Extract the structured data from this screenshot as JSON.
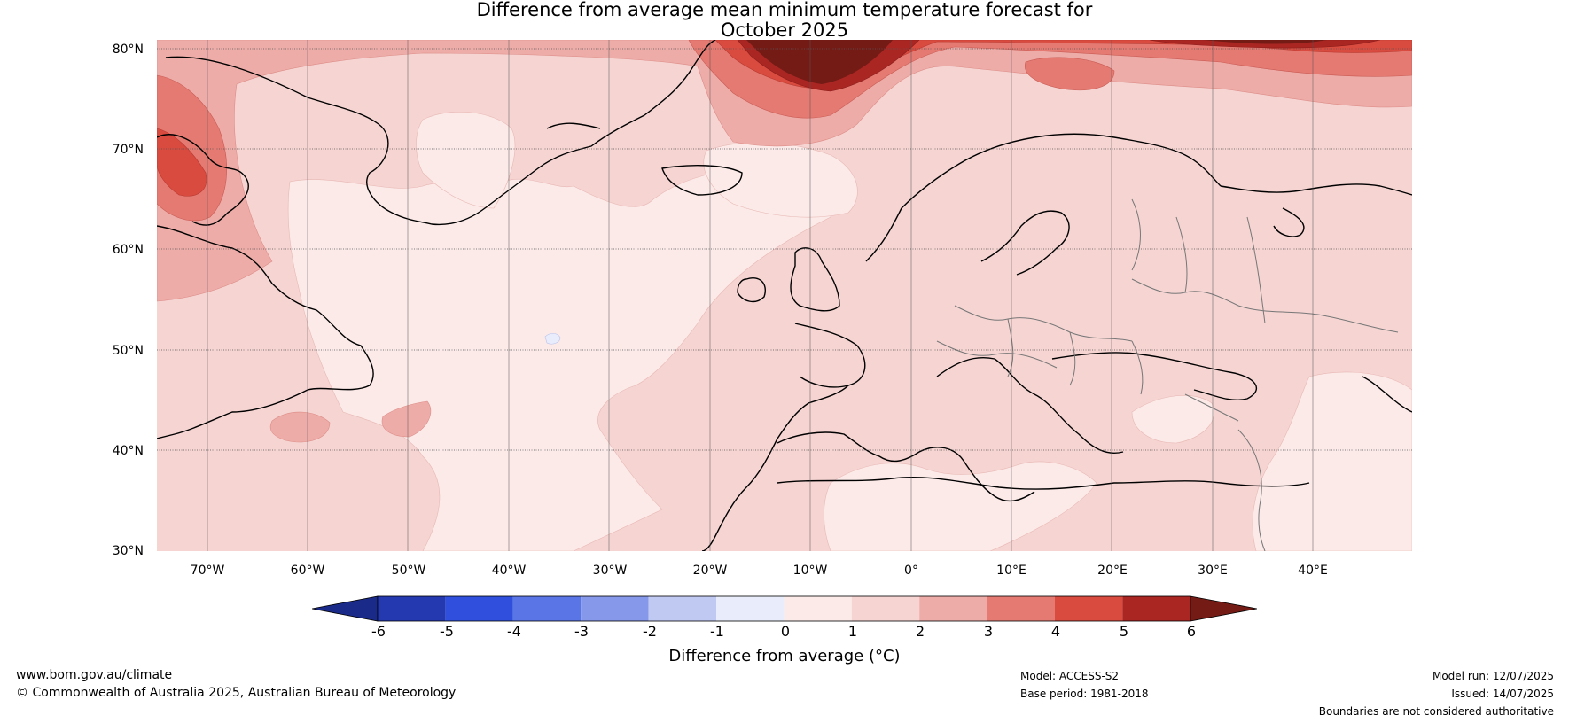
{
  "title": {
    "line1": "Difference from average mean minimum temperature forecast for",
    "line2": "October 2025"
  },
  "lat_labels": [
    "80°N",
    "70°N",
    "60°N",
    "50°N",
    "40°N",
    "30°N"
  ],
  "lon_labels": [
    "70°W",
    "60°W",
    "50°W",
    "40°W",
    "30°W",
    "20°W",
    "10°W",
    "0°",
    "10°E",
    "20°E",
    "30°E",
    "40°E"
  ],
  "colorbar": {
    "ticks": [
      "-6",
      "-5",
      "-4",
      "-3",
      "-2",
      "-1",
      "0",
      "1",
      "2",
      "3",
      "4",
      "5",
      "6"
    ],
    "colors": [
      "#1a2a88",
      "#2438b0",
      "#2f4fdc",
      "#5a76e6",
      "#8598ea",
      "#c0c9f2",
      "#e9ecfb",
      "#fbeae8",
      "#f5d4d2",
      "#eeaca8",
      "#e47a72",
      "#d94a3f",
      "#aa2623",
      "#741b16"
    ],
    "label": "Difference from average (°C)"
  },
  "footer": {
    "url": "www.bom.gov.au/climate",
    "copyright": "© Commonwealth of Australia 2025, Australian Bureau of Meteorology",
    "model": "Model: ACCESS-S2",
    "base_period": "Base period: 1981-2018",
    "model_run": "Model run: 12/07/2025",
    "issued": "Issued: 14/07/2025",
    "disclaimer": "Boundaries are not considered authoritative"
  }
}
